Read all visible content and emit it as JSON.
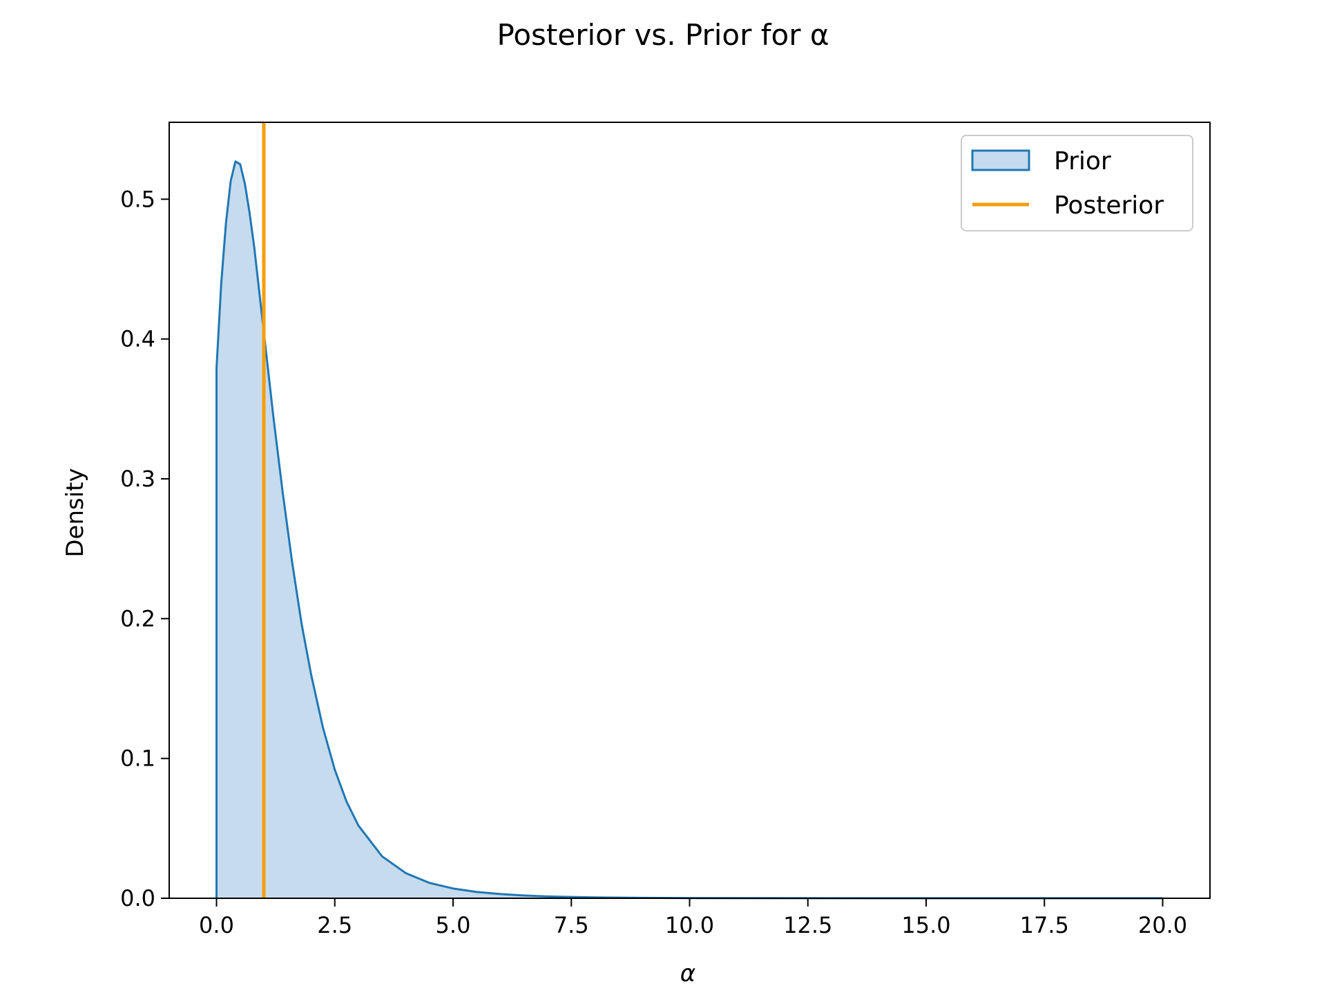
{
  "chart_data": {
    "type": "area",
    "title": "Posterior vs. Prior for α",
    "xlabel": "α",
    "ylabel": "Density",
    "xlim": [
      -1.0,
      21.0
    ],
    "ylim": [
      0.0,
      0.555
    ],
    "x_ticks": [
      0.0,
      2.5,
      5.0,
      7.5,
      10.0,
      12.5,
      15.0,
      17.5,
      20.0
    ],
    "x_tick_labels": [
      "0.0",
      "2.5",
      "5.0",
      "7.5",
      "10.0",
      "12.5",
      "15.0",
      "17.5",
      "20.0"
    ],
    "y_ticks": [
      0.0,
      0.1,
      0.2,
      0.3,
      0.4,
      0.5
    ],
    "y_tick_labels": [
      "0.0",
      "0.1",
      "0.2",
      "0.3",
      "0.4",
      "0.5"
    ],
    "grid": false,
    "legend": {
      "placement": "top-right",
      "entries": [
        {
          "label": "Prior",
          "kind": "area"
        },
        {
          "label": "Posterior",
          "kind": "line"
        }
      ]
    },
    "series": [
      {
        "name": "Prior",
        "kind": "area",
        "color": "#1f77b4",
        "fill": "#c6dbed",
        "x": [
          0.0,
          0.1,
          0.2,
          0.3,
          0.4,
          0.5,
          0.6,
          0.7,
          0.8,
          1.0,
          1.2,
          1.4,
          1.6,
          1.8,
          2.0,
          2.25,
          2.5,
          2.75,
          3.0,
          3.5,
          4.0,
          4.5,
          5.0,
          5.5,
          6.0,
          6.5,
          7.0,
          7.5,
          8.0,
          9.0,
          10.0,
          12.0,
          14.0,
          16.0,
          18.0,
          20.0
        ],
        "y": [
          0.379,
          0.44,
          0.483,
          0.513,
          0.527,
          0.525,
          0.511,
          0.49,
          0.465,
          0.405,
          0.345,
          0.29,
          0.24,
          0.196,
          0.16,
          0.122,
          0.092,
          0.069,
          0.052,
          0.03,
          0.018,
          0.011,
          0.007,
          0.0045,
          0.003,
          0.002,
          0.0013,
          0.0009,
          0.0006,
          0.0003,
          0.00015,
          4e-05,
          1e-05,
          0.0,
          0.0,
          0.0
        ]
      },
      {
        "name": "Posterior",
        "kind": "vline",
        "color": "#f59e0b",
        "x": 1.0
      }
    ]
  }
}
